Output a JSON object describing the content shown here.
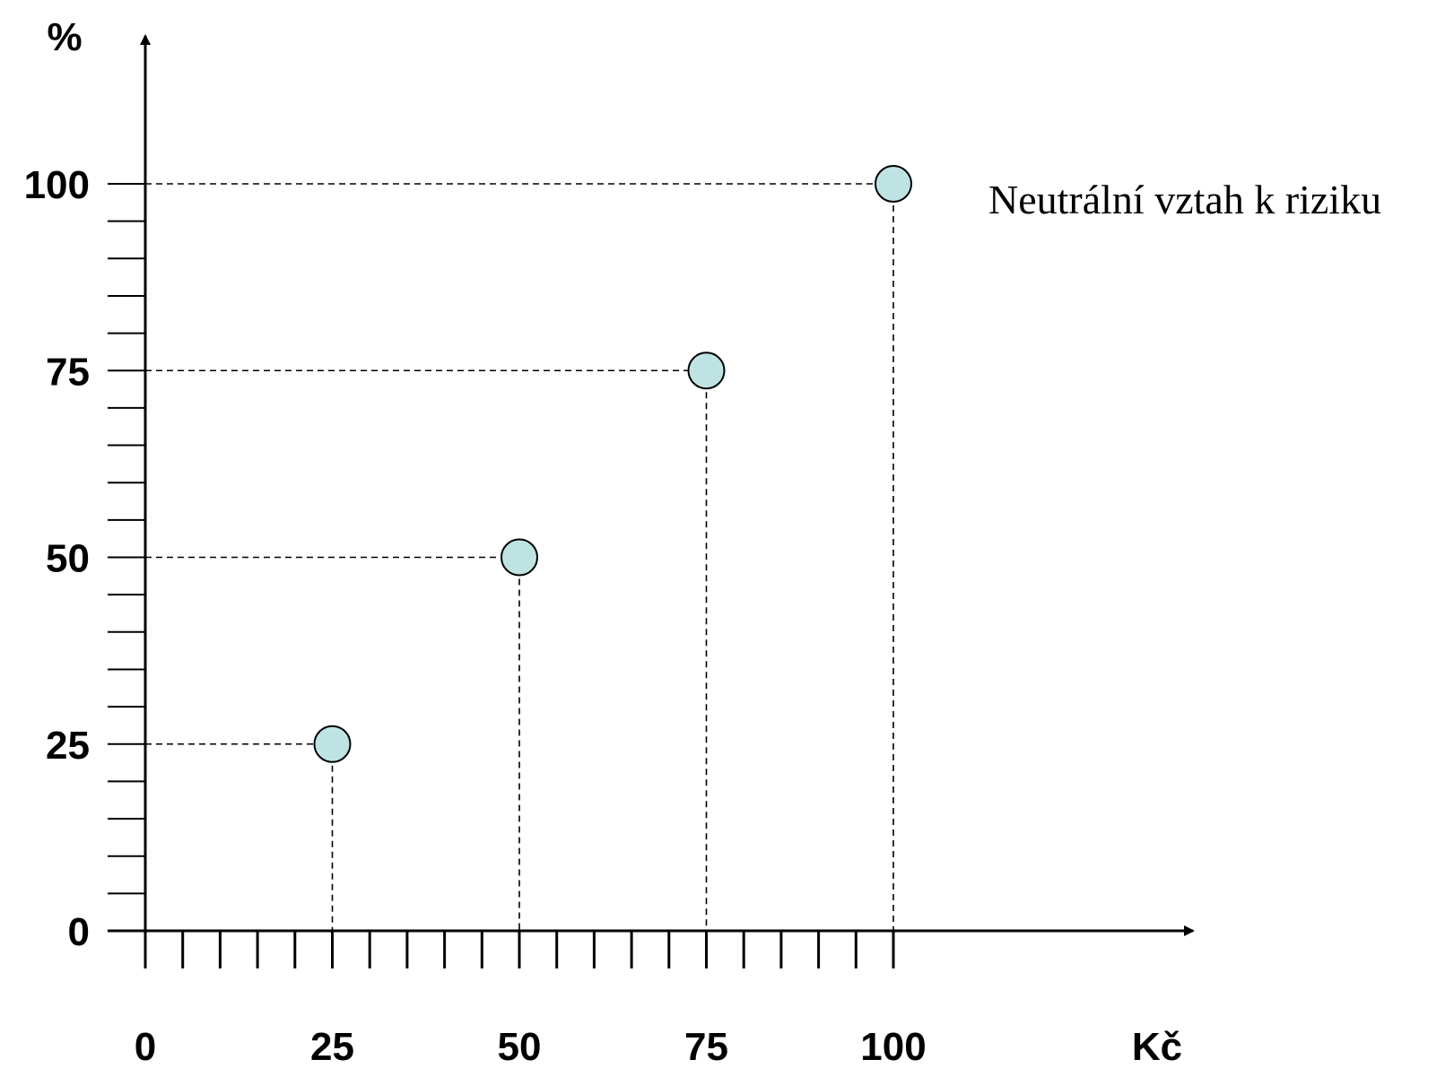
{
  "chart_data": {
    "type": "scatter",
    "ylabel": "%",
    "xlabel": "Kč",
    "annotation": "Neutrální vztah k riziku",
    "x_ticks": [
      "0",
      "25",
      "50",
      "75",
      "100"
    ],
    "y_ticks": [
      "0",
      "25",
      "50",
      "75",
      "100"
    ],
    "xlim": [
      0,
      140
    ],
    "ylim": [
      0,
      120
    ],
    "x_minor_step": 5,
    "y_minor_step": 5,
    "points": [
      {
        "x": 25,
        "y": 25
      },
      {
        "x": 50,
        "y": 50
      },
      {
        "x": 75,
        "y": 75
      },
      {
        "x": 100,
        "y": 100
      }
    ],
    "point_color": "#bfe3e3",
    "grid": false
  }
}
